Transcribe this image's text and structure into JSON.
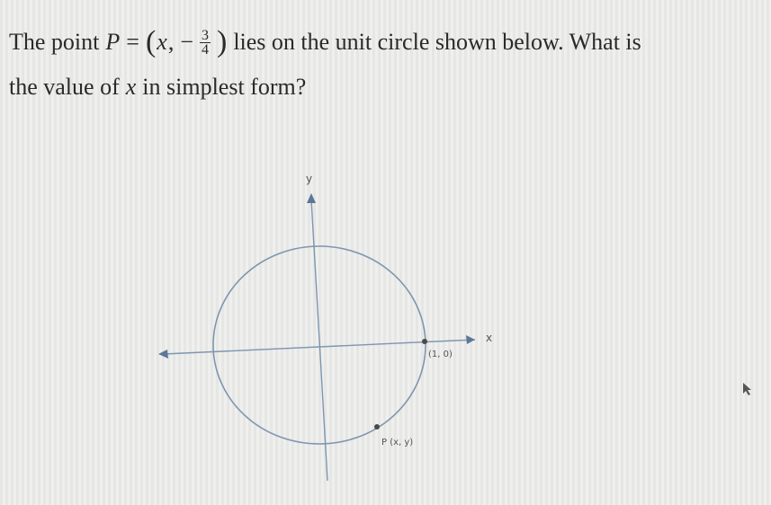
{
  "question": {
    "lead": "The point",
    "point_name": "P",
    "equals": "=",
    "open_paren": "(",
    "point_x": "x",
    "comma": ",",
    "minus": "−",
    "numerator": "3",
    "denominator": "4",
    "close_paren": ")",
    "rest_line1": "lies on the unit circle shown below. What is",
    "line2_start": "the value of",
    "variable": "x",
    "line2_end": "in simplest form?"
  },
  "diagram": {
    "y_axis_label": "y",
    "x_axis_label": "x",
    "point_label": "(1, 0)",
    "p_label": "P (x, y)"
  }
}
